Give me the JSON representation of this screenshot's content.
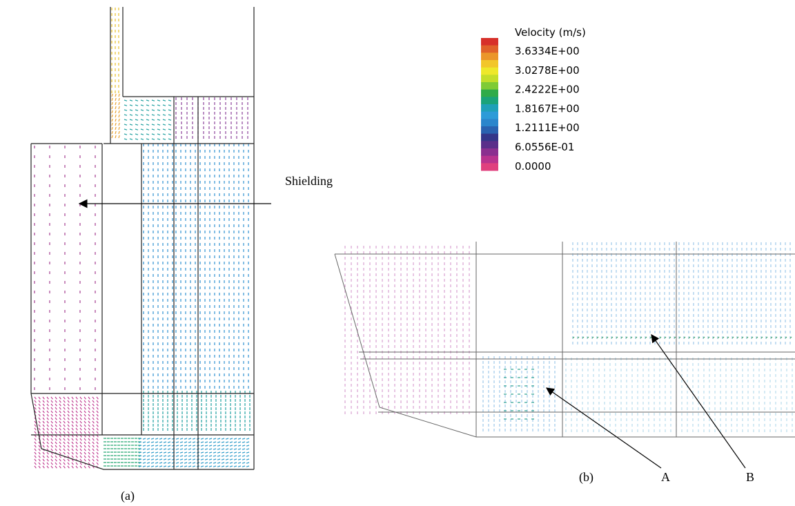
{
  "legend": {
    "title": "Velocity (m/s)",
    "labels": [
      "3.6334E+00",
      "3.0278E+00",
      "2.4222E+00",
      "1.8167E+00",
      "1.2111E+00",
      "6.0556E-01",
      "0.0000"
    ]
  },
  "annotations": {
    "shielding": "Shielding",
    "panel_a": "(a)",
    "panel_b": "(b)",
    "point_a": "A",
    "point_b": "B"
  }
}
